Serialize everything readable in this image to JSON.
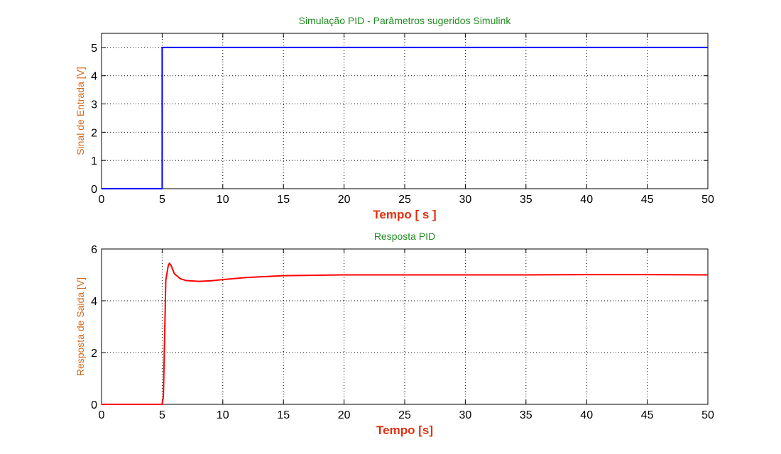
{
  "colors": {
    "title": "#228B22",
    "label_y": "#D2691E",
    "label_x": "#E03010",
    "input_line": "#0000FF",
    "output_line": "#FF0000",
    "grid": "#000000"
  },
  "chart_data": [
    {
      "type": "line",
      "title": "Simulação PID - Parâmetros sugeridos Simulink",
      "xlabel": "Tempo [ s ]",
      "ylabel": "Sinal de Entrada [V]",
      "xlim": [
        0,
        50
      ],
      "ylim": [
        0,
        5.5
      ],
      "xticks": [
        0,
        5,
        10,
        15,
        20,
        25,
        30,
        35,
        40,
        45,
        50
      ],
      "yticks": [
        0,
        1,
        2,
        3,
        4,
        5
      ],
      "grid": true,
      "series": [
        {
          "color": "#0000FF",
          "x": [
            0,
            5,
            5,
            50
          ],
          "y": [
            0,
            0,
            5,
            5
          ]
        }
      ]
    },
    {
      "type": "line",
      "title": "Resposta PID",
      "xlabel": "Tempo [s]",
      "ylabel": "Resposta de Saida [V]",
      "xlim": [
        0,
        50
      ],
      "ylim": [
        0,
        6
      ],
      "xticks": [
        0,
        5,
        10,
        15,
        20,
        25,
        30,
        35,
        40,
        45,
        50
      ],
      "yticks": [
        0,
        2,
        4,
        6
      ],
      "grid": true,
      "series": [
        {
          "color": "#FF0000",
          "x": [
            0,
            5,
            5.1,
            5.3,
            5.5,
            5.6,
            5.75,
            6.0,
            6.5,
            7.0,
            8.0,
            9.0,
            10.0,
            12.0,
            15.0,
            20.0,
            25.0,
            30.0,
            35.0,
            40.0,
            45.0,
            50.0
          ],
          "y": [
            0,
            0,
            0.3,
            4.8,
            5.35,
            5.45,
            5.35,
            5.05,
            4.85,
            4.78,
            4.75,
            4.77,
            4.82,
            4.9,
            4.97,
            5.0,
            5.0,
            5.0,
            5.0,
            5.01,
            5.01,
            5.0
          ]
        }
      ]
    }
  ]
}
